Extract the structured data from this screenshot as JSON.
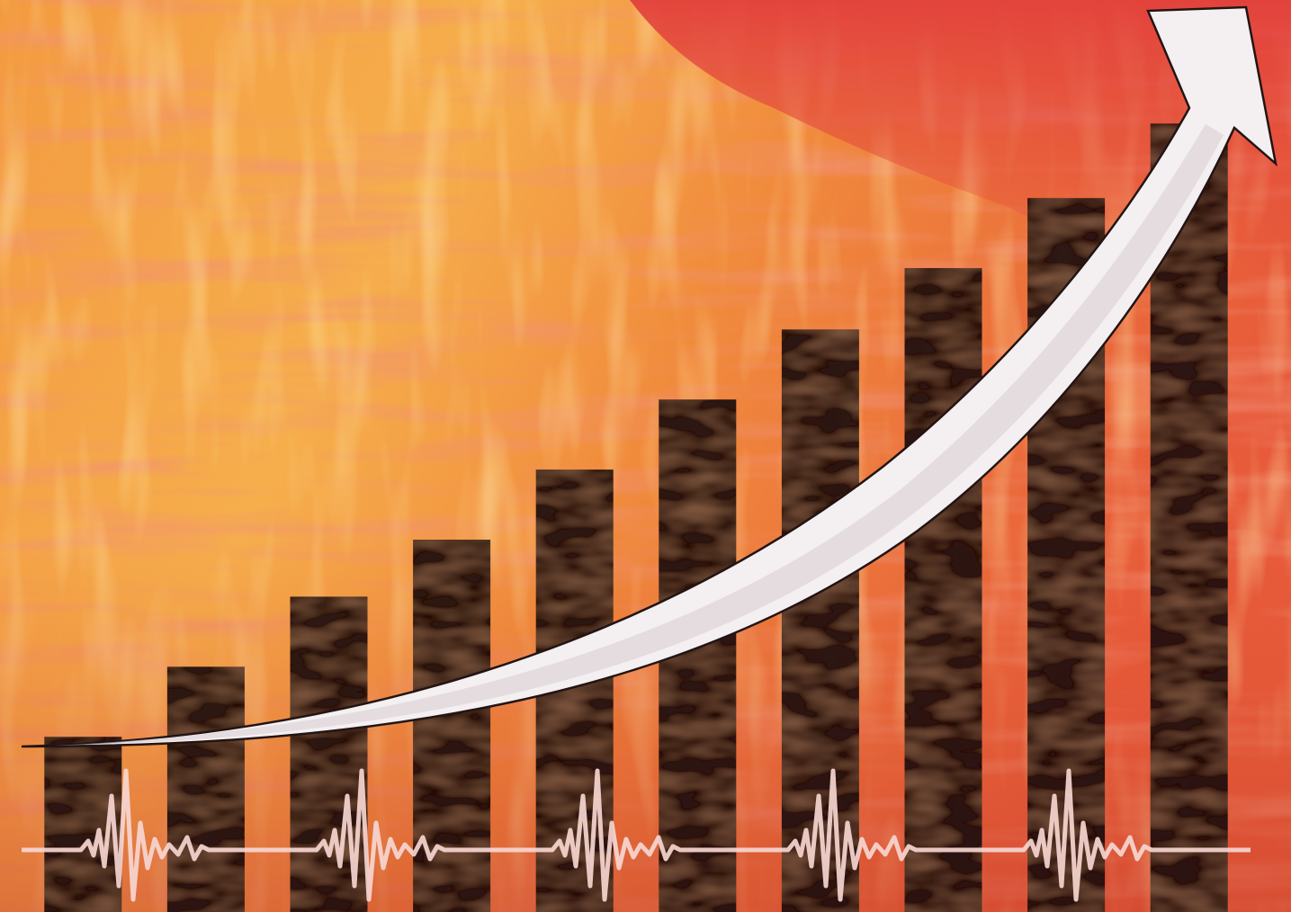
{
  "chart_data": {
    "type": "bar",
    "title": "",
    "xlabel": "",
    "ylabel": "",
    "categories": [
      "",
      "",
      "",
      "",
      "",
      "",
      "",
      "",
      "",
      ""
    ],
    "values": [
      2.0,
      2.8,
      3.6,
      4.25,
      5.05,
      5.85,
      6.65,
      7.35,
      8.15,
      9.0
    ],
    "ylim": [
      0,
      10
    ],
    "grid": false,
    "legend": "none",
    "overlays": {
      "trend_arrow": true,
      "pulse_line": true
    },
    "colors": {
      "bar": "#1e110b",
      "arrow_fill": "#f4eff0",
      "arrow_outline": "#221414",
      "pulse": "#f6d6d0",
      "paint_light": "#f7b24a",
      "paint_mid": "#ef7a3a",
      "paint_red": "#e04638"
    }
  }
}
